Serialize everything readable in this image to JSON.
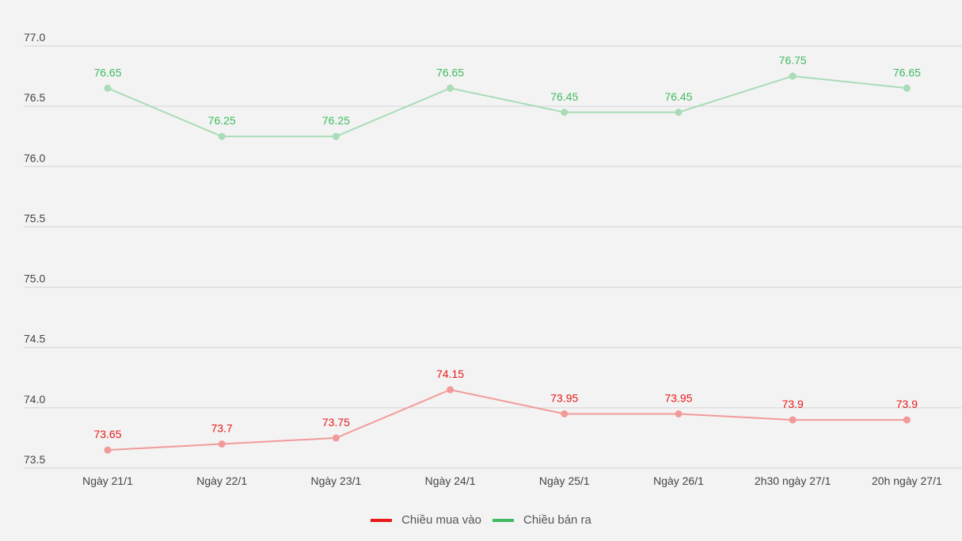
{
  "chart_data": {
    "type": "line",
    "title": "",
    "xlabel": "",
    "ylabel": "",
    "categories": [
      "Ngày 21/1",
      "Ngày 22/1",
      "Ngày 23/1",
      "Ngày 24/1",
      "Ngày 25/1",
      "Ngày 26/1",
      "2h30 ngày 27/1",
      "20h ngày 27/1"
    ],
    "ylim": [
      73.5,
      77.0
    ],
    "yticks": [
      "73.5",
      "74.0",
      "74.5",
      "75.0",
      "75.5",
      "76.0",
      "76.5",
      "77.0"
    ],
    "grid": true,
    "legend_placement": "bottom-center",
    "series": [
      {
        "name": "Chiều mua vào",
        "color": "#e8191a",
        "line_color": "#f29a9a",
        "values": [
          73.65,
          73.7,
          73.75,
          74.15,
          73.95,
          73.95,
          73.9,
          73.9
        ]
      },
      {
        "name": "Chiều bán ra",
        "color": "#3fba62",
        "line_color": "#a9dcb8",
        "values": [
          76.65,
          76.25,
          76.25,
          76.65,
          76.45,
          76.45,
          76.75,
          76.65
        ]
      }
    ]
  }
}
